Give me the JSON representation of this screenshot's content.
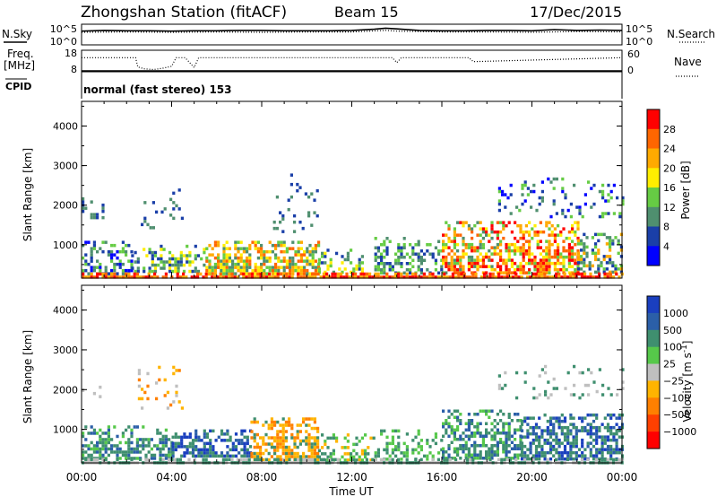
{
  "header": {
    "station": "Zhongshan Station (fitACF)",
    "beam": "Beam 15",
    "date": "17/Dec/2015"
  },
  "chart_data": [
    {
      "type": "line",
      "panel": "noise",
      "left_label": "N.Sky",
      "right_label": "N.Search",
      "y_ticks_left": [
        "10^5",
        "10^0"
      ],
      "y_ticks_right": [
        "10^5",
        "10^0"
      ],
      "series": [
        {
          "name": "N.Sky",
          "style": "solid",
          "x": [
            0,
            1,
            2,
            3,
            4,
            5,
            6,
            7,
            8,
            9,
            10,
            11,
            12,
            13,
            13.5,
            14,
            15,
            16,
            17,
            18,
            19,
            20,
            21,
            22,
            23,
            24
          ],
          "log10_values": [
            3.4,
            3.6,
            3.5,
            3.5,
            3.4,
            3.5,
            3.5,
            3.6,
            3.6,
            3.5,
            3.5,
            3.5,
            3.6,
            3.9,
            4.2,
            4.0,
            3.6,
            3.5,
            3.5,
            3.6,
            3.6,
            3.5,
            3.8,
            3.6,
            3.7,
            3.6
          ]
        },
        {
          "name": "N.Search",
          "style": "dotted",
          "x": [
            0,
            2,
            4,
            6,
            8,
            10,
            12,
            13.5,
            14,
            16,
            18,
            20,
            22,
            24
          ],
          "log10_values": [
            3.1,
            3.2,
            3.1,
            3.2,
            3.1,
            3.2,
            3.2,
            3.6,
            3.4,
            3.2,
            3.2,
            3.1,
            3.3,
            3.2
          ]
        }
      ]
    },
    {
      "type": "line",
      "panel": "frequency",
      "left_label": "Freq.",
      "left_unit": "[MHz]",
      "right_label": "Nave",
      "y_ticks_left": [
        "18",
        "8"
      ],
      "y_ticks_right": [
        "60",
        "0"
      ],
      "series": [
        {
          "name": "Freq.",
          "style": "solid",
          "x": [
            0,
            24
          ],
          "values": [
            8,
            8
          ],
          "ylim": [
            8,
            18
          ]
        },
        {
          "name": "Nave",
          "style": "dotted",
          "x": [
            0,
            2.4,
            2.5,
            2.8,
            3.2,
            3.6,
            4.0,
            4.2,
            4.6,
            5.0,
            5.2,
            5.4,
            13.8,
            14.0,
            14.2,
            17.2,
            17.4,
            24
          ],
          "values": [
            40,
            40,
            12,
            6,
            4,
            8,
            14,
            40,
            40,
            10,
            40,
            40,
            40,
            25,
            40,
            40,
            28,
            40
          ],
          "ylim": [
            0,
            60
          ]
        }
      ]
    },
    {
      "type": "table",
      "panel": "cpid",
      "label": "CPID",
      "text": "normal (fast stereo) 153"
    },
    {
      "type": "heatmap",
      "panel": "power",
      "ylabel": "Slant Range [km]",
      "x_range_hours": [
        0,
        24
      ],
      "ylim": [
        180,
        4600
      ],
      "y_ticks": [
        1000,
        2000,
        3000,
        4000
      ],
      "colorbar": {
        "label": "Power [dB]",
        "ticks": [
          "4",
          "8",
          "12",
          "16",
          "20",
          "24",
          "28"
        ],
        "colors": [
          "#0000ff",
          "#1a3fa8",
          "#4f8f6f",
          "#66cc44",
          "#ffee00",
          "#ffaa00",
          "#ff6600",
          "#ff0000"
        ],
        "range": [
          0,
          32
        ]
      },
      "regions": [
        {
          "x": [
            0.0,
            2.2
          ],
          "range_km": [
            300,
            1100
          ],
          "density": 0.5,
          "levels": [
            0,
            1,
            2,
            3
          ]
        },
        {
          "x": [
            2.2,
            5.5
          ],
          "range_km": [
            300,
            1000
          ],
          "density": 0.45,
          "levels": [
            1,
            2,
            3,
            4
          ]
        },
        {
          "x": [
            5.5,
            10.5
          ],
          "range_km": [
            300,
            1100
          ],
          "density": 0.7,
          "levels": [
            2,
            3,
            4,
            5,
            6
          ]
        },
        {
          "x": [
            10.5,
            12.5
          ],
          "range_km": [
            300,
            900
          ],
          "density": 0.4,
          "levels": [
            1,
            2,
            3,
            4
          ]
        },
        {
          "x": [
            13.0,
            16.0
          ],
          "range_km": [
            300,
            1200
          ],
          "density": 0.4,
          "levels": [
            1,
            2,
            3
          ]
        },
        {
          "x": [
            16.0,
            18.8
          ],
          "range_km": [
            300,
            1600
          ],
          "density": 0.6,
          "levels": [
            2,
            3,
            4,
            5,
            6,
            7
          ]
        },
        {
          "x": [
            18.8,
            22.0
          ],
          "range_km": [
            300,
            1600
          ],
          "density": 0.6,
          "levels": [
            3,
            4,
            5,
            6,
            7
          ]
        },
        {
          "x": [
            22.0,
            24.0
          ],
          "range_km": [
            300,
            1300
          ],
          "density": 0.5,
          "levels": [
            1,
            2,
            3,
            5
          ]
        },
        {
          "x": [
            0.0,
            1.0
          ],
          "range_km": [
            1700,
            2200
          ],
          "density": 0.25,
          "levels": [
            1,
            2
          ]
        },
        {
          "x": [
            2.5,
            4.5
          ],
          "range_km": [
            1400,
            2500
          ],
          "density": 0.12,
          "levels": [
            1,
            2
          ]
        },
        {
          "x": [
            8.5,
            10.5
          ],
          "range_km": [
            1300,
            2800
          ],
          "density": 0.1,
          "levels": [
            1,
            2
          ]
        },
        {
          "x": [
            18.5,
            24.0
          ],
          "range_km": [
            1700,
            2700
          ],
          "density": 0.15,
          "levels": [
            0,
            1,
            2,
            3
          ]
        },
        {
          "x": [
            0.0,
            24.0
          ],
          "range_km": [
            180,
            300
          ],
          "density": 0.9,
          "levels": [
            5,
            6,
            7
          ]
        }
      ]
    },
    {
      "type": "heatmap",
      "panel": "velocity",
      "ylabel": "Slant Range [km]",
      "xlabel": "Time UT",
      "x_ticks": [
        "00:00",
        "04:00",
        "08:00",
        "12:00",
        "16:00",
        "20:00",
        "00:00"
      ],
      "x_range_hours": [
        0,
        24
      ],
      "ylim": [
        180,
        4600
      ],
      "y_ticks": [
        1000,
        2000,
        3000,
        4000
      ],
      "colorbar": {
        "label": "Velocity [m s",
        "label_exponent": "-1",
        "label_end": "]",
        "ticks": [
          "1000",
          "500",
          "100",
          "25",
          "−25",
          "−100",
          "−500",
          "−1000"
        ],
        "colors": [
          "#1a3fbf",
          "#2b5fa8",
          "#3f8f6f",
          "#56c84a",
          "#bfbfbf",
          "#ffb400",
          "#ff8000",
          "#ff4000",
          "#ff0000"
        ],
        "range": [
          -1200,
          1200
        ]
      },
      "regions": [
        {
          "x": [
            0.0,
            4.0
          ],
          "range_km": [
            250,
            1100
          ],
          "density": 0.55,
          "levels": [
            2,
            2,
            3,
            1
          ]
        },
        {
          "x": [
            4.0,
            7.5
          ],
          "range_km": [
            300,
            1000
          ],
          "density": 0.6,
          "levels": [
            0,
            1,
            2
          ]
        },
        {
          "x": [
            7.5,
            10.5
          ],
          "range_km": [
            250,
            1300
          ],
          "density": 0.6,
          "levels": [
            5,
            6,
            5,
            2
          ]
        },
        {
          "x": [
            10.5,
            13.0
          ],
          "range_km": [
            250,
            900
          ],
          "density": 0.45,
          "levels": [
            2,
            3,
            5
          ]
        },
        {
          "x": [
            13.0,
            16.0
          ],
          "range_km": [
            250,
            1000
          ],
          "density": 0.35,
          "levels": [
            2,
            3
          ]
        },
        {
          "x": [
            16.0,
            19.5
          ],
          "range_km": [
            250,
            1500
          ],
          "density": 0.6,
          "levels": [
            2,
            2,
            3,
            1
          ]
        },
        {
          "x": [
            19.5,
            24.0
          ],
          "range_km": [
            250,
            1400
          ],
          "density": 0.6,
          "levels": [
            0,
            1,
            2,
            2
          ]
        },
        {
          "x": [
            0.0,
            1.0
          ],
          "range_km": [
            1800,
            2100
          ],
          "density": 0.25,
          "levels": [
            4
          ]
        },
        {
          "x": [
            2.5,
            4.5
          ],
          "range_km": [
            1500,
            2600
          ],
          "density": 0.1,
          "levels": [
            5,
            6,
            4
          ]
        },
        {
          "x": [
            18.5,
            24.0
          ],
          "range_km": [
            1800,
            2700
          ],
          "density": 0.12,
          "levels": [
            4,
            2
          ]
        },
        {
          "x": [
            0.0,
            24.0
          ],
          "range_km": [
            180,
            280
          ],
          "density": 0.85,
          "levels": [
            2,
            4
          ]
        }
      ]
    }
  ]
}
